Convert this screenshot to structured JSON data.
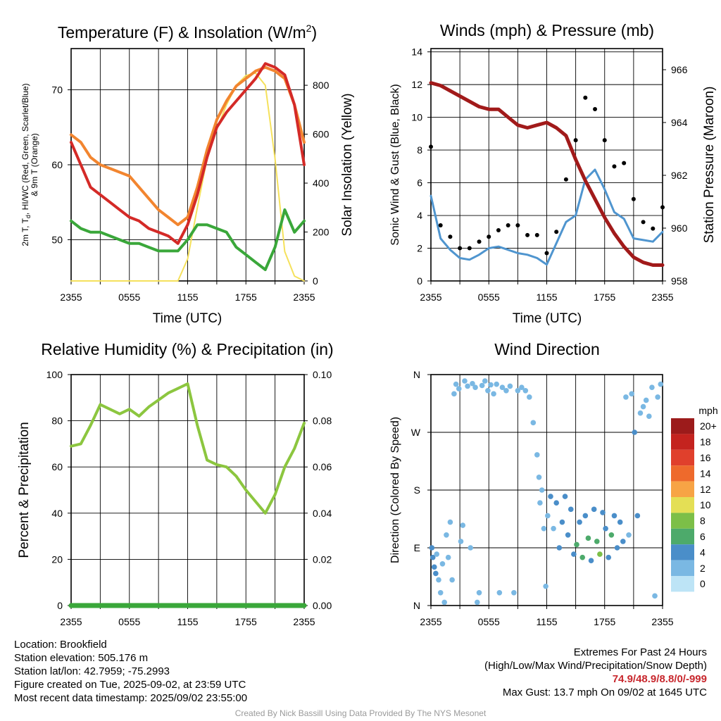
{
  "figure": {
    "colors": {
      "temp": "#d42a27",
      "heat_index": "#d42a27",
      "dewpoint": "#3aa73a",
      "temp_9m": "#f2852f",
      "solar": "#f5e15c",
      "wind": "#4f95cf",
      "gust": "#000000",
      "pressure": "#a11a1a",
      "rh": "#8cc63f",
      "precip": "#3aa73a"
    }
  },
  "chart_data": [
    {
      "id": "temp",
      "type": "line",
      "title": "Temperature (F) & Insolation (W/m",
      "title_sup": "2",
      "title_close": ")",
      "xlabel": "Time (UTC)",
      "ylabel_lines": [
        "2m T, T",
        "d",
        ", HI/WC (Red, Green, Scarlet/Blue)",
        "& 9m T (Orange)"
      ],
      "y2label": "Solar Insolation (Yellow)",
      "x_ticks": [
        "2355",
        "0555",
        "1155",
        "1755",
        "2355"
      ],
      "ylim": [
        44.5,
        75.5
      ],
      "y_ticks": [
        "50",
        "60",
        "70"
      ],
      "y2lim": [
        0,
        950
      ],
      "y2_ticks": [
        "0",
        "200",
        "400",
        "600",
        "800"
      ],
      "x_hours": [
        0,
        1,
        2,
        3,
        4,
        5,
        6,
        7,
        8,
        9,
        10,
        11,
        12,
        13,
        14,
        15,
        16,
        17,
        18,
        19,
        20,
        21,
        22,
        23,
        24
      ],
      "series": [
        {
          "key": "temp_9m",
          "axis": "left",
          "values": [
            64,
            63,
            61,
            60,
            59.5,
            59,
            58.5,
            57,
            55.5,
            54,
            53,
            52,
            53,
            57,
            62,
            66,
            68.5,
            70.5,
            71.5,
            72.5,
            73,
            72.5,
            71.5,
            68,
            63
          ]
        },
        {
          "key": "temp",
          "axis": "left",
          "values": [
            63,
            60,
            57,
            56,
            55,
            54,
            53,
            52.5,
            51.5,
            51,
            50.5,
            49.5,
            52,
            56,
            61,
            65,
            67,
            68.5,
            70,
            71.5,
            73.5,
            73,
            72,
            68,
            60
          ]
        },
        {
          "key": "dewpoint",
          "axis": "left",
          "values": [
            52.5,
            51.5,
            51,
            51,
            50.5,
            50,
            49.5,
            49.5,
            49,
            48.5,
            48.5,
            48.5,
            50,
            52,
            52,
            51.5,
            51,
            49,
            48,
            47,
            46,
            49,
            54,
            51,
            52.5
          ]
        },
        {
          "key": "solar",
          "axis": "right",
          "values": [
            0,
            0,
            0,
            0,
            0,
            0,
            0,
            0,
            0,
            0,
            0,
            0,
            90,
            300,
            500,
            620,
            720,
            800,
            840,
            850,
            800,
            500,
            120,
            20,
            0
          ]
        }
      ]
    },
    {
      "id": "wind",
      "type": "line",
      "title": "Winds (mph) & Pressure (mb)",
      "xlabel": "Time (UTC)",
      "ylabel": "Sonic Wind & Gust (Blue, Black)",
      "y2label": "Station Pressure (Maroon)",
      "x_ticks": [
        "2355",
        "0555",
        "1155",
        "1755",
        "2355"
      ],
      "ylim": [
        0,
        14.2
      ],
      "y_ticks": [
        "0",
        "2",
        "4",
        "6",
        "8",
        "10",
        "12",
        "14"
      ],
      "y2lim": [
        958,
        966.8
      ],
      "y2_ticks": [
        "958",
        "960",
        "962",
        "964",
        "966"
      ],
      "x_hours": [
        0,
        1,
        2,
        3,
        4,
        5,
        6,
        7,
        8,
        9,
        10,
        11,
        12,
        13,
        14,
        15,
        16,
        17,
        18,
        19,
        20,
        21,
        22,
        23,
        24
      ],
      "series": [
        {
          "key": "wind",
          "axis": "left",
          "values": [
            5.2,
            2.6,
            1.9,
            1.4,
            1.3,
            1.6,
            2.0,
            2.1,
            1.9,
            1.7,
            1.6,
            1.4,
            1.0,
            2.3,
            3.6,
            4.0,
            6.2,
            6.8,
            5.6,
            4.2,
            3.8,
            2.6,
            2.5,
            2.4,
            3.0
          ]
        },
        {
          "key": "gust",
          "axis": "left",
          "values": [
            8.2,
            3.4,
            2.7,
            2.0,
            2.0,
            2.4,
            2.7,
            3.1,
            3.4,
            3.4,
            2.8,
            2.8,
            1.7,
            3.0,
            6.2,
            8.6,
            11.2,
            10.5,
            8.6,
            7.0,
            7.2,
            5.0,
            3.6,
            3.2,
            4.5
          ]
        },
        {
          "key": "pressure",
          "axis": "right",
          "values": [
            965.5,
            965.4,
            965.2,
            965.0,
            964.8,
            964.6,
            964.5,
            964.5,
            964.2,
            963.9,
            963.8,
            963.9,
            964.0,
            963.8,
            963.5,
            962.6,
            961.8,
            961.1,
            960.4,
            959.8,
            959.3,
            958.9,
            958.7,
            958.6,
            958.6
          ]
        }
      ]
    },
    {
      "id": "rh",
      "type": "line",
      "title": "Relative Humidity (%) & Precipitation (in)",
      "ylabel": "Percent & Precipitation",
      "x_ticks": [
        "2355",
        "0555",
        "1155",
        "1755",
        "2355"
      ],
      "ylim": [
        0,
        100
      ],
      "y_ticks": [
        "0",
        "20",
        "40",
        "60",
        "80",
        "100"
      ],
      "y2lim": [
        0,
        0.1
      ],
      "y2_ticks": [
        "0.00",
        "0.02",
        "0.04",
        "0.06",
        "0.08",
        "0.10"
      ],
      "x_hours": [
        0,
        1,
        2,
        3,
        4,
        5,
        6,
        7,
        8,
        9,
        10,
        11,
        12,
        13,
        14,
        15,
        16,
        17,
        18,
        19,
        20,
        21,
        22,
        23,
        24
      ],
      "series": [
        {
          "key": "rh",
          "axis": "left",
          "values": [
            69,
            70,
            78,
            87,
            85,
            83,
            85,
            82,
            86,
            89,
            92,
            94,
            96,
            78,
            63,
            61,
            60,
            56,
            50,
            45,
            40,
            48,
            60,
            68,
            79
          ]
        },
        {
          "key": "precip",
          "axis": "right",
          "values": [
            0,
            0,
            0,
            0,
            0,
            0,
            0,
            0,
            0,
            0,
            0,
            0,
            0,
            0,
            0,
            0,
            0,
            0,
            0,
            0,
            0,
            0,
            0,
            0,
            0
          ]
        }
      ]
    },
    {
      "id": "direction",
      "type": "scatter",
      "title": "Wind Direction",
      "ylabel": "Direction (Colored By Speed)",
      "x_ticks": [
        "2355",
        "0555",
        "1155",
        "1755",
        "2355"
      ],
      "y_ticks": [
        "N",
        "E",
        "S",
        "W",
        "N"
      ],
      "ylim": [
        0,
        360
      ],
      "legend_title": "mph",
      "legend_labels": [
        "0",
        "2",
        "4",
        "6",
        "8",
        "10",
        "12",
        "14",
        "16",
        "18",
        "20+"
      ],
      "legend_colors": [
        "#bde4f6",
        "#7ab8e3",
        "#4a8ec9",
        "#4daa6b",
        "#7cbf48",
        "#e4df55",
        "#f7a445",
        "#ee6a2c",
        "#e0402c",
        "#c4231f",
        "#9c1b1b"
      ],
      "points": [
        {
          "h": 0.1,
          "dir": 90,
          "spd": 3
        },
        {
          "h": 0.2,
          "dir": 75,
          "spd": 4
        },
        {
          "h": 0.35,
          "dir": 60,
          "spd": 4
        },
        {
          "h": 0.5,
          "dir": 50,
          "spd": 3
        },
        {
          "h": 0.6,
          "dir": 80,
          "spd": 2
        },
        {
          "h": 0.8,
          "dir": 40,
          "spd": 1
        },
        {
          "h": 1.0,
          "dir": 20,
          "spd": 1
        },
        {
          "h": 1.2,
          "dir": 65,
          "spd": 1
        },
        {
          "h": 1.4,
          "dir": 5,
          "spd": 1
        },
        {
          "h": 1.6,
          "dir": 110,
          "spd": 1
        },
        {
          "h": 1.8,
          "dir": 75,
          "spd": 1
        },
        {
          "h": 2.0,
          "dir": 130,
          "spd": 1
        },
        {
          "h": 2.2,
          "dir": 40,
          "spd": 1
        },
        {
          "h": 2.4,
          "dir": 330,
          "spd": 1
        },
        {
          "h": 2.6,
          "dir": 345,
          "spd": 1
        },
        {
          "h": 2.9,
          "dir": 338,
          "spd": 1
        },
        {
          "h": 3.1,
          "dir": 100,
          "spd": 1
        },
        {
          "h": 3.3,
          "dir": 125,
          "spd": 1
        },
        {
          "h": 3.5,
          "dir": 350,
          "spd": 1
        },
        {
          "h": 3.8,
          "dir": 342,
          "spd": 1
        },
        {
          "h": 4.1,
          "dir": 90,
          "spd": 1
        },
        {
          "h": 4.3,
          "dir": 346,
          "spd": 1
        },
        {
          "h": 4.6,
          "dir": 340,
          "spd": 1
        },
        {
          "h": 4.8,
          "dir": 5,
          "spd": 1
        },
        {
          "h": 5.0,
          "dir": 20,
          "spd": 1
        },
        {
          "h": 5.3,
          "dir": 343,
          "spd": 1
        },
        {
          "h": 5.6,
          "dir": 350,
          "spd": 1
        },
        {
          "h": 5.9,
          "dir": 335,
          "spd": 1
        },
        {
          "h": 6.2,
          "dir": 344,
          "spd": 1
        },
        {
          "h": 6.5,
          "dir": 330,
          "spd": 1
        },
        {
          "h": 6.8,
          "dir": 345,
          "spd": 1
        },
        {
          "h": 7.1,
          "dir": 20,
          "spd": 1
        },
        {
          "h": 7.4,
          "dir": 340,
          "spd": 1
        },
        {
          "h": 7.8,
          "dir": 335,
          "spd": 1
        },
        {
          "h": 8.2,
          "dir": 342,
          "spd": 1
        },
        {
          "h": 8.6,
          "dir": 20,
          "spd": 2
        },
        {
          "h": 9.0,
          "dir": 335,
          "spd": 1
        },
        {
          "h": 9.4,
          "dir": 340,
          "spd": 1
        },
        {
          "h": 9.8,
          "dir": 335,
          "spd": 1
        },
        {
          "h": 10.2,
          "dir": 325,
          "spd": 1
        },
        {
          "h": 10.6,
          "dir": 285,
          "spd": 1
        },
        {
          "h": 11.0,
          "dir": 235,
          "spd": 1
        },
        {
          "h": 11.2,
          "dir": 200,
          "spd": 1
        },
        {
          "h": 11.3,
          "dir": 160,
          "spd": 2
        },
        {
          "h": 11.5,
          "dir": 180,
          "spd": 1
        },
        {
          "h": 11.7,
          "dir": 120,
          "spd": 1
        },
        {
          "h": 11.9,
          "dir": 30,
          "spd": 1
        },
        {
          "h": 12.1,
          "dir": 140,
          "spd": 2
        },
        {
          "h": 12.4,
          "dir": 170,
          "spd": 3
        },
        {
          "h": 12.7,
          "dir": 120,
          "spd": 2
        },
        {
          "h": 13.0,
          "dir": 160,
          "spd": 3
        },
        {
          "h": 13.3,
          "dir": 90,
          "spd": 3
        },
        {
          "h": 13.6,
          "dir": 130,
          "spd": 3
        },
        {
          "h": 13.9,
          "dir": 170,
          "spd": 4
        },
        {
          "h": 14.2,
          "dir": 110,
          "spd": 4
        },
        {
          "h": 14.5,
          "dir": 150,
          "spd": 4
        },
        {
          "h": 14.8,
          "dir": 80,
          "spd": 3
        },
        {
          "h": 15.1,
          "dir": 95,
          "spd": 5
        },
        {
          "h": 15.4,
          "dir": 130,
          "spd": 4
        },
        {
          "h": 15.7,
          "dir": 75,
          "spd": 6
        },
        {
          "h": 16.0,
          "dir": 140,
          "spd": 4
        },
        {
          "h": 16.3,
          "dir": 105,
          "spd": 5
        },
        {
          "h": 16.6,
          "dir": 70,
          "spd": 4
        },
        {
          "h": 16.9,
          "dir": 150,
          "spd": 3
        },
        {
          "h": 17.2,
          "dir": 100,
          "spd": 6
        },
        {
          "h": 17.5,
          "dir": 80,
          "spd": 7
        },
        {
          "h": 17.8,
          "dir": 145,
          "spd": 4
        },
        {
          "h": 18.1,
          "dir": 120,
          "spd": 3
        },
        {
          "h": 18.4,
          "dir": 75,
          "spd": 4
        },
        {
          "h": 18.7,
          "dir": 110,
          "spd": 5
        },
        {
          "h": 19.0,
          "dir": 140,
          "spd": 3
        },
        {
          "h": 19.3,
          "dir": 90,
          "spd": 4
        },
        {
          "h": 19.6,
          "dir": 130,
          "spd": 4
        },
        {
          "h": 19.9,
          "dir": 100,
          "spd": 3
        },
        {
          "h": 20.2,
          "dir": 325,
          "spd": 1
        },
        {
          "h": 20.5,
          "dir": 110,
          "spd": 2
        },
        {
          "h": 20.8,
          "dir": 330,
          "spd": 2
        },
        {
          "h": 21.1,
          "dir": 270,
          "spd": 3
        },
        {
          "h": 21.4,
          "dir": 140,
          "spd": 4
        },
        {
          "h": 21.7,
          "dir": 300,
          "spd": 1
        },
        {
          "h": 22.0,
          "dir": 310,
          "spd": 1
        },
        {
          "h": 22.3,
          "dir": 320,
          "spd": 1
        },
        {
          "h": 22.6,
          "dir": 295,
          "spd": 1
        },
        {
          "h": 22.9,
          "dir": 340,
          "spd": 1
        },
        {
          "h": 23.2,
          "dir": 15,
          "spd": 1
        },
        {
          "h": 23.5,
          "dir": 325,
          "spd": 1
        },
        {
          "h": 23.8,
          "dir": 345,
          "spd": 1
        }
      ]
    }
  ],
  "info": {
    "location": "Location: Brookfield",
    "elevation": "Station elevation: 505.176 m",
    "latlon": "Station lat/lon: 42.7959; -75.2993",
    "created": "Figure created on Tue, 2025-09-02, at 23:59 UTC",
    "recent": "Most recent data timestamp: 2025/09/02 23:55:00",
    "extremes_title": "Extremes For Past 24 Hours",
    "extremes_subtitle": "(High/Low/Max Wind/Precipitation/Snow Depth)",
    "extremes_values": "74.9/48.9/8.8/0/-999",
    "max_gust": "Max Gust: 13.7 mph On 09/02 at 1645 UTC"
  },
  "credit": "Created By Nick Bassill Using Data Provided By The NYS Mesonet"
}
